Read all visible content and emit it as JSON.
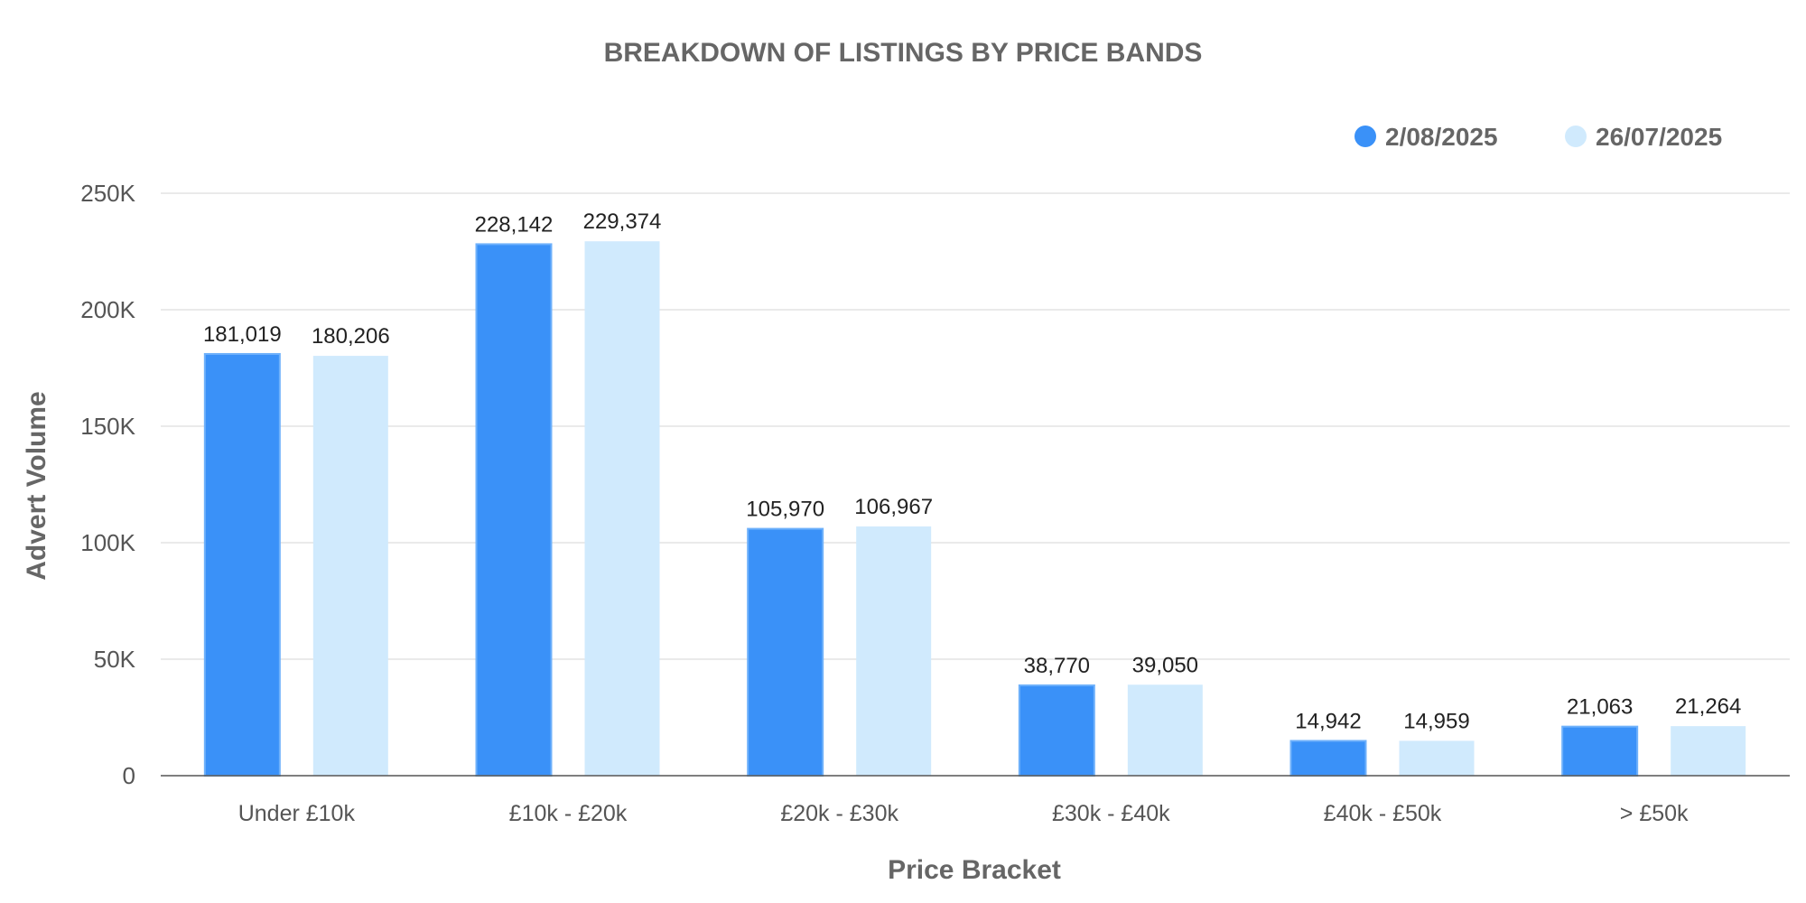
{
  "chart_data": {
    "type": "bar",
    "title": "BREAKDOWN OF LISTINGS BY PRICE BANDS",
    "xlabel": "Price Bracket",
    "ylabel": "Advert Volume",
    "categories": [
      "Under £10k",
      "£10k - £20k",
      "£20k - £30k",
      "£30k - £40k",
      "£40k - £50k",
      "> £50k"
    ],
    "series": [
      {
        "name": "2/08/2025",
        "color": "#3a91f8",
        "values": [
          181019,
          228142,
          105970,
          38770,
          14942,
          21063
        ],
        "labels": [
          "181,019",
          "228,142",
          "105,970",
          "38,770",
          "14,942",
          "21,063"
        ]
      },
      {
        "name": "26/07/2025",
        "color": "#d0eafd",
        "values": [
          180206,
          229374,
          106967,
          39050,
          14959,
          21264
        ],
        "labels": [
          "180,206",
          "229,374",
          "106,967",
          "39,050",
          "14,959",
          "21,264"
        ]
      }
    ],
    "ylim": [
      0,
      250000
    ],
    "yticks": [
      0,
      50000,
      100000,
      150000,
      200000,
      250000
    ],
    "ytick_labels": [
      "0",
      "50K",
      "100K",
      "150K",
      "200K",
      "250K"
    ],
    "grid": true,
    "legend_position": "top-right"
  }
}
